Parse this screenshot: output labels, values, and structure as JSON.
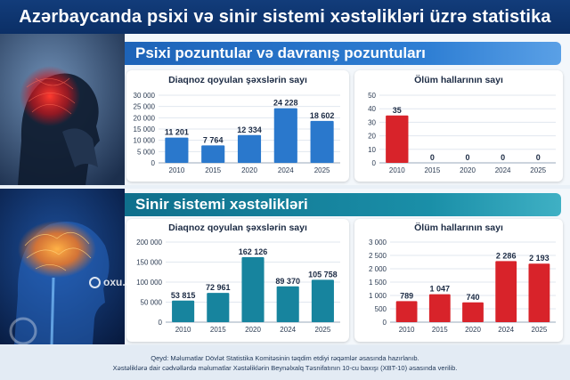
{
  "page_title": "Azərbaycanda psixi və sinir sistemi xəstəlikləri üzrə statistika",
  "sections": [
    {
      "title": "Psixi pozuntular və davranış pozuntuları",
      "charts": [
        {
          "title": "Diaqnoz qoyulan şəxslərin sayı"
        },
        {
          "title": "Ölüm hallarının sayı"
        }
      ]
    },
    {
      "title": "Sinir sistemi xəstəlikləri",
      "charts": [
        {
          "title": "Diaqnoz qoyulan şəxslərin sayı"
        },
        {
          "title": "Ölüm hallarının sayı"
        }
      ]
    }
  ],
  "watermark": "oxu.az",
  "footer": {
    "line1": "Qeyd: Məlumatlar Dövlət Statistika Komitəsinin təqdim etdiyi rəqəmlər əsasında hazırlanıb.",
    "line2": "Xəstəliklərə dair cədvəllərdə məlumatlar Xəstəliklərin Beynəlxalq Təsnifatının 10-cu baxışı (XBT-10) əsasında verilib."
  },
  "colors": {
    "header": "#0b2f66",
    "blue_bar": "#2a78cc",
    "red_bar": "#d8232a",
    "teal_bar": "#17849e"
  },
  "chart_data": [
    {
      "type": "bar",
      "title": "Diaqnoz qoyulan şəxslərin sayı",
      "categories": [
        "2010",
        "2015",
        "2020",
        "2024",
        "2025"
      ],
      "values": [
        11201,
        7764,
        12334,
        24228,
        18602
      ],
      "labels": [
        "11 201",
        "7 764",
        "12 334",
        "24 228",
        "18 602"
      ],
      "ylim": [
        0,
        30000
      ],
      "yticks": [
        "0",
        "5 000",
        "10 000",
        "15 000",
        "20 000",
        "25 000",
        "30 000"
      ],
      "ytick_values": [
        0,
        5000,
        10000,
        15000,
        20000,
        25000,
        30000
      ],
      "grid": true,
      "color": "#2a78cc"
    },
    {
      "type": "bar",
      "title": "Ölüm hallarının sayı",
      "categories": [
        "2010",
        "2015",
        "2020",
        "2024",
        "2025"
      ],
      "values": [
        35,
        0,
        0,
        0,
        0
      ],
      "labels": [
        "35",
        "0",
        "0",
        "0",
        "0"
      ],
      "ylim": [
        0,
        50
      ],
      "yticks": [
        "0",
        "10",
        "20",
        "30",
        "40",
        "50"
      ],
      "ytick_values": [
        0,
        10,
        20,
        30,
        40,
        50
      ],
      "grid": true,
      "color": "#d8232a"
    },
    {
      "type": "bar",
      "title": "Diaqnoz qoyulan şəxslərin sayı",
      "categories": [
        "2010",
        "2015",
        "2020",
        "2024",
        "2025"
      ],
      "values": [
        53815,
        72961,
        162126,
        89370,
        105758
      ],
      "labels": [
        "53 815",
        "72 961",
        "162 126",
        "89 370",
        "105 758"
      ],
      "ylim": [
        0,
        200000
      ],
      "yticks": [
        "0",
        "50 000",
        "100 000",
        "150 000",
        "200 000"
      ],
      "ytick_values": [
        0,
        50000,
        100000,
        150000,
        200000
      ],
      "grid": true,
      "color": "#17849e"
    },
    {
      "type": "bar",
      "title": "Ölüm hallarının sayı",
      "categories": [
        "2010",
        "2015",
        "2020",
        "2024",
        "2025"
      ],
      "values": [
        789,
        1047,
        740,
        2286,
        2193
      ],
      "labels": [
        "789",
        "1 047",
        "740",
        "2 286",
        "2 193"
      ],
      "ylim": [
        0,
        3000
      ],
      "yticks": [
        "0",
        "500",
        "1 000",
        "1 500",
        "2 000",
        "2 500",
        "3 000"
      ],
      "ytick_values": [
        0,
        500,
        1000,
        1500,
        2000,
        2500,
        3000
      ],
      "grid": true,
      "color": "#d8232a"
    }
  ]
}
